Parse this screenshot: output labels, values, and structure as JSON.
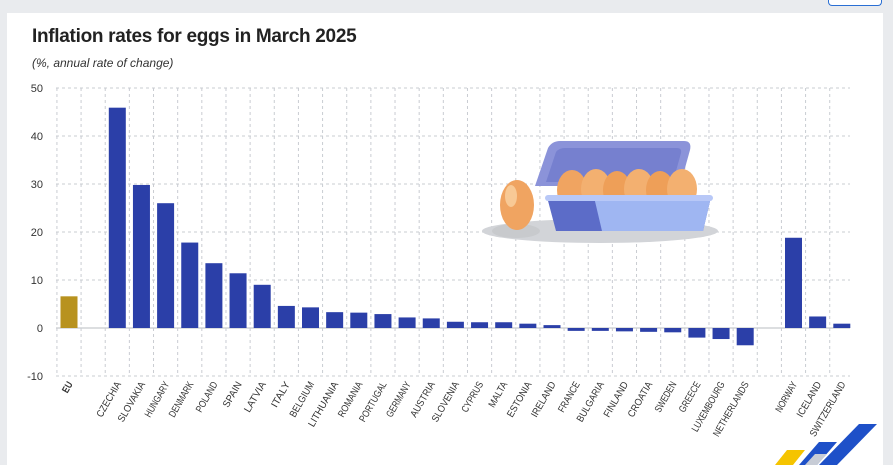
{
  "title": "Inflation rates for eggs in March 2025",
  "subtitle": "(%, annual rate of change)",
  "colors": {
    "eu_bar": "#b8921e",
    "country_bar": "#2b3fa8",
    "grid": "#c9ccd2",
    "axis_text": "#333333"
  },
  "illustration": "egg-carton-icon",
  "chart_data": {
    "type": "bar",
    "title": "Inflation rates for eggs in March 2025",
    "subtitle": "(%, annual rate of change)",
    "xlabel": "",
    "ylabel": "",
    "ylim": [
      -10,
      50
    ],
    "yticks": [
      -10,
      0,
      10,
      20,
      30,
      40,
      50
    ],
    "grid": true,
    "categories": [
      "EU",
      "CZECHIA",
      "SLOVAKIA",
      "HUNGARY",
      "DENMARK",
      "POLAND",
      "SPAIN",
      "LATVIA",
      "ITALY",
      "BELGIUM",
      "LITHUANIA",
      "ROMANIA",
      "PORTUGAL",
      "GERMANY",
      "AUSTRIA",
      "SLOVENIA",
      "CYPRUS",
      "MALTA",
      "ESTONIA",
      "IRELAND",
      "FRANCE",
      "BULGARIA",
      "FINLAND",
      "CROATIA",
      "SWEDEN",
      "GREECE",
      "LUXEMBOURG",
      "NETHERLANDS",
      "NORWAY",
      "ICELAND",
      "SWITZERLAND"
    ],
    "values": [
      6.6,
      45.9,
      29.8,
      26.0,
      17.8,
      13.5,
      11.4,
      9.0,
      4.6,
      4.3,
      3.3,
      3.2,
      2.9,
      2.2,
      2.0,
      1.3,
      1.2,
      1.2,
      0.9,
      0.6,
      -0.6,
      -0.6,
      -0.7,
      -0.8,
      -0.9,
      -2.0,
      -2.3,
      -3.6,
      18.8,
      2.4,
      0.9
    ]
  }
}
